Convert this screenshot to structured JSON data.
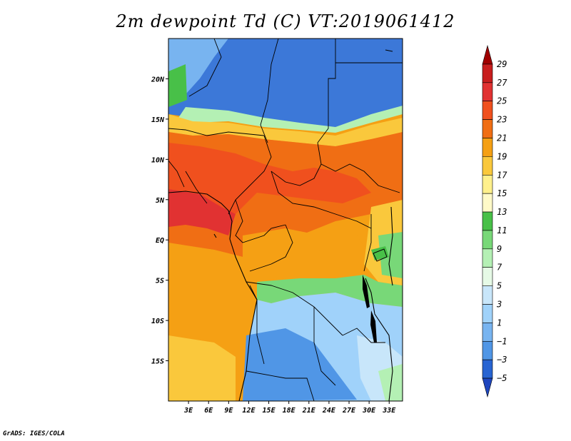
{
  "title": "2m dewpoint Td (C) VT:2019061412",
  "credit": "GrADS: IGES/COLA",
  "map": {
    "lon_range": [
      0,
      35
    ],
    "lat_range": [
      -20,
      25
    ],
    "x_ticks": [
      "3E",
      "6E",
      "9E",
      "12E",
      "15E",
      "18E",
      "21E",
      "24E",
      "27E",
      "30E",
      "33E"
    ],
    "x_tick_values": [
      3,
      6,
      9,
      12,
      15,
      18,
      21,
      24,
      27,
      30,
      33
    ],
    "y_ticks": [
      "20N",
      "15N",
      "10N",
      "5N",
      "EQ",
      "5S",
      "10S",
      "15S"
    ],
    "y_tick_values": [
      20,
      15,
      10,
      5,
      0,
      -5,
      -10,
      -15
    ]
  },
  "colorbar": {
    "labels": [
      "29",
      "27",
      "25",
      "23",
      "21",
      "19",
      "17",
      "15",
      "13",
      "11",
      "9",
      "7",
      "5",
      "3",
      "1",
      "−1",
      "−3",
      "−5"
    ],
    "colors": [
      "#a00000",
      "#c81e1e",
      "#e13232",
      "#f0501e",
      "#f06e14",
      "#f5a014",
      "#fac83c",
      "#fff08c",
      "#fffac8",
      "#48c048",
      "#78d878",
      "#b4f0b4",
      "#e6fae6",
      "#c8e6fa",
      "#a0d2fa",
      "#78b4f0",
      "#5096e6",
      "#2864d2",
      "#1e46be"
    ]
  }
}
